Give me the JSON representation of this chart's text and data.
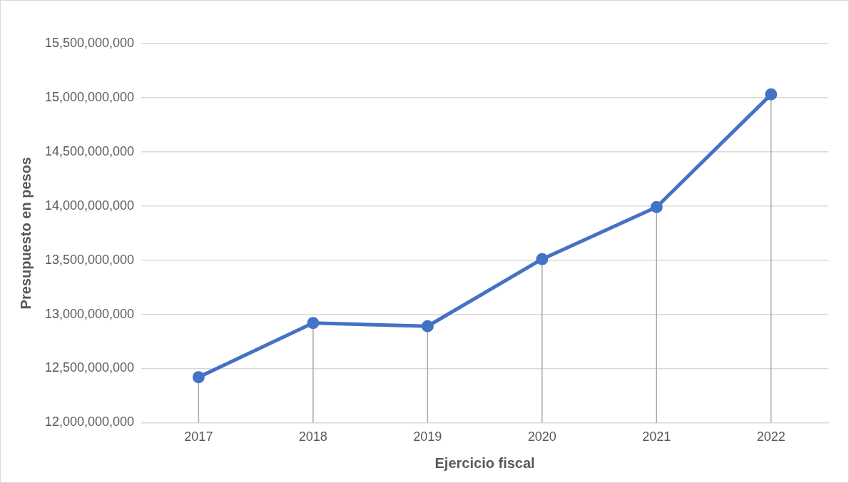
{
  "chart_data": {
    "type": "line",
    "xlabel": "Ejercicio fiscal",
    "ylabel": "Presupuesto en pesos",
    "categories": [
      "2017",
      "2018",
      "2019",
      "2020",
      "2021",
      "2022"
    ],
    "series": [
      {
        "color": "#4472c4",
        "values": [
          12420000000,
          12920000000,
          12890000000,
          13510000000,
          13990000000,
          15030000000
        ],
        "errors": [
          [
            12000000000,
            12420000000
          ],
          [
            12000000000,
            12920000000
          ],
          [
            12000000000,
            12890000000
          ],
          [
            12000000000,
            13510000000
          ],
          [
            12000000000,
            13990000000
          ],
          [
            12000000000,
            15030000000
          ]
        ]
      }
    ],
    "ylim": [
      12000000000,
      15500000000
    ],
    "yticks": [
      {
        "value": 12000000000,
        "label": "12,000,000,000"
      },
      {
        "value": 12500000000,
        "label": "12,500,000,000"
      },
      {
        "value": 13000000000,
        "label": "13,000,000,000"
      },
      {
        "value": 13500000000,
        "label": "13,500,000,000"
      },
      {
        "value": 14000000000,
        "label": "14,000,000,000"
      },
      {
        "value": 14500000000,
        "label": "14,500,000,000"
      },
      {
        "value": 15000000000,
        "label": "15,000,000,000"
      },
      {
        "value": 15500000000,
        "label": "15,500,000,000"
      }
    ],
    "grid": "y",
    "legend": false,
    "marker": "circle",
    "line_style": "solid"
  }
}
